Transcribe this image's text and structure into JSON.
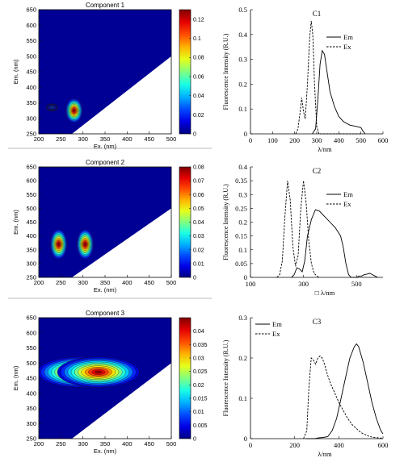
{
  "chart_data": [
    {
      "type": "heatmap",
      "title": "Component 1",
      "xlabel": "Ex. (nm)",
      "ylabel": "Em. (nm)",
      "xlim": [
        200,
        500
      ],
      "ylim": [
        250,
        650
      ],
      "xticks": [
        "200",
        "250",
        "300",
        "350",
        "400",
        "450",
        "500"
      ],
      "yticks": [
        "250",
        "300",
        "350",
        "400",
        "450",
        "500",
        "550",
        "600",
        "650"
      ],
      "colorbar": {
        "min": 0,
        "max": 0.13,
        "ticks": [
          "0",
          "0.02",
          "0.04",
          "0.06",
          "0.08",
          "0.1",
          "0.12"
        ]
      },
      "peaks": [
        {
          "ex": 280,
          "em": 325,
          "value": 0.13
        },
        {
          "ex": 230,
          "em": 335,
          "value": 0.03
        }
      ]
    },
    {
      "type": "line",
      "title": "C1",
      "xlabel": "λ/nm",
      "ylabel": "Fluorescence Intensity (R.U.)",
      "xlim": [
        0,
        600
      ],
      "ylim": [
        0,
        0.5
      ],
      "xticks": [
        "0",
        "100",
        "200",
        "300",
        "400",
        "500",
        "600"
      ],
      "yticks": [
        "0",
        "0.1",
        "0.2",
        "0.3",
        "0.4",
        "0.5"
      ],
      "series": [
        {
          "name": "Em",
          "style": "solid",
          "x": [
            280,
            295,
            305,
            315,
            325,
            335,
            345,
            360,
            380,
            400,
            420,
            450,
            480,
            500,
            510,
            520
          ],
          "y": [
            0,
            0.02,
            0.14,
            0.28,
            0.335,
            0.32,
            0.26,
            0.17,
            0.11,
            0.07,
            0.05,
            0.035,
            0.03,
            0.025,
            0.01,
            0
          ]
        },
        {
          "name": "Ex",
          "style": "dashed",
          "x": [
            205,
            215,
            225,
            232,
            240,
            248,
            258,
            268,
            275,
            282,
            290,
            300,
            310,
            330,
            400,
            500
          ],
          "y": [
            0,
            0.02,
            0.09,
            0.145,
            0.09,
            0.06,
            0.2,
            0.39,
            0.455,
            0.4,
            0.2,
            0.03,
            0,
            0,
            0,
            0
          ]
        }
      ]
    },
    {
      "type": "heatmap",
      "title": "Component 2",
      "xlabel": "Ex. (nm)",
      "ylabel": "Em. (nm)",
      "xlim": [
        200,
        500
      ],
      "ylim": [
        250,
        650
      ],
      "xticks": [
        "200",
        "250",
        "300",
        "350",
        "400",
        "450",
        "500"
      ],
      "yticks": [
        "250",
        "300",
        "350",
        "400",
        "450",
        "500",
        "550",
        "600",
        "650"
      ],
      "colorbar": {
        "min": 0,
        "max": 0.08,
        "ticks": [
          "0",
          "0.01",
          "0.02",
          "0.03",
          "0.04",
          "0.05",
          "0.06",
          "0.07",
          "0.08"
        ]
      },
      "peaks": [
        {
          "ex": 245,
          "em": 370,
          "value": 0.08
        },
        {
          "ex": 305,
          "em": 370,
          "value": 0.08
        }
      ]
    },
    {
      "type": "line",
      "title": "C2",
      "xlabel": "λ/nm",
      "xlabel_prefix": "□",
      "ylabel": "Fluorescence Intensity (R.U.)",
      "xlim": [
        100,
        600
      ],
      "ylim": [
        0,
        0.4
      ],
      "xticks": [
        "100",
        "300",
        "500"
      ],
      "yticks": [
        "0",
        "0.05",
        "0.1",
        "0.15",
        "0.2",
        "0.25",
        "0.3",
        "0.35",
        "0.4"
      ],
      "series": [
        {
          "name": "Em",
          "style": "solid",
          "x": [
            255,
            265,
            275,
            285,
            295,
            305,
            315,
            330,
            345,
            360,
            380,
            400,
            420,
            440,
            450,
            460,
            470,
            480,
            490,
            500,
            510,
            520,
            530,
            540,
            550,
            560,
            570,
            580
          ],
          "y": [
            0,
            0.01,
            0.035,
            0.03,
            0.02,
            0.06,
            0.15,
            0.21,
            0.245,
            0.24,
            0.22,
            0.2,
            0.18,
            0.15,
            0.11,
            0.05,
            0.01,
            0,
            0,
            0,
            0.005,
            0.005,
            0.01,
            0.012,
            0.015,
            0.01,
            0.005,
            0
          ]
        },
        {
          "name": "Ex",
          "style": "dashed",
          "x": [
            200,
            210,
            220,
            230,
            240,
            250,
            260,
            270,
            280,
            290,
            300,
            310,
            320,
            330,
            340,
            350,
            360
          ],
          "y": [
            0,
            0.01,
            0.06,
            0.22,
            0.35,
            0.28,
            0.11,
            0.04,
            0.08,
            0.25,
            0.35,
            0.27,
            0.13,
            0.05,
            0.015,
            0.005,
            0
          ]
        }
      ]
    },
    {
      "type": "heatmap",
      "title": "Component 3",
      "xlabel": "Ex. (nm)",
      "ylabel": "Em. (nm)",
      "xlim": [
        200,
        500
      ],
      "ylim": [
        250,
        650
      ],
      "xticks": [
        "200",
        "250",
        "300",
        "350",
        "400",
        "450",
        "500"
      ],
      "yticks": [
        "250",
        "300",
        "350",
        "400",
        "450",
        "500",
        "550",
        "600",
        "650"
      ],
      "colorbar": {
        "min": 0,
        "max": 0.045,
        "ticks": [
          "0",
          "0.005",
          "0.01",
          "0.015",
          "0.02",
          "0.025",
          "0.03",
          "0.035",
          "0.04"
        ]
      },
      "peaks": [
        {
          "ex": 280,
          "em": 470,
          "value": 0.044
        },
        {
          "ex": 340,
          "em": 470,
          "value": 0.044
        }
      ]
    },
    {
      "type": "line",
      "title": "C3",
      "xlabel": "λ/nm",
      "ylabel": "Fluorescence Intensity (R.U.)",
      "xlim": [
        0,
        600
      ],
      "ylim": [
        0,
        0.3
      ],
      "xticks": [
        "0",
        "200",
        "400",
        "600"
      ],
      "yticks": [
        "0",
        "0.1",
        "0.2",
        "0.3"
      ],
      "series": [
        {
          "name": "Em",
          "style": "solid",
          "x": [
            250,
            270,
            290,
            310,
            330,
            350,
            370,
            390,
            410,
            430,
            450,
            470,
            480,
            490,
            510,
            530,
            550,
            570,
            590,
            600
          ],
          "y": [
            0,
            0,
            0,
            0.002,
            0.003,
            0.005,
            0.02,
            0.05,
            0.1,
            0.15,
            0.2,
            0.228,
            0.235,
            0.228,
            0.19,
            0.14,
            0.09,
            0.05,
            0.02,
            0.012
          ]
        },
        {
          "name": "Ex",
          "style": "dashed",
          "x": [
            240,
            255,
            265,
            275,
            285,
            295,
            305,
            315,
            325,
            335,
            345,
            360,
            380,
            400,
            420,
            440,
            460,
            480,
            500,
            520,
            540,
            560,
            580,
            600
          ],
          "y": [
            0,
            0.02,
            0.13,
            0.2,
            0.195,
            0.185,
            0.2,
            0.205,
            0.2,
            0.185,
            0.165,
            0.14,
            0.115,
            0.09,
            0.07,
            0.05,
            0.035,
            0.025,
            0.015,
            0.01,
            0.005,
            0.003,
            0.002,
            0.001
          ]
        }
      ]
    }
  ]
}
